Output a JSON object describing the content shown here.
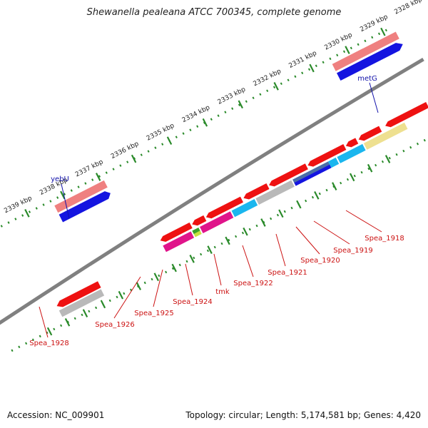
{
  "header": {
    "title": "Shewanella pealeana ATCC 700345, complete genome"
  },
  "footer": {
    "accession": "Accession: NC_009901",
    "summary": "Topology: circular; Length: 5,174,581 bp; Genes: 4,420"
  },
  "scale": {
    "unit": "kbp",
    "ticks": [
      "2339 kbp",
      "2338 kbp",
      "2337 kbp",
      "2336 kbp",
      "2335 kbp",
      "2334 kbp",
      "2333 kbp",
      "2332 kbp",
      "2331 kbp",
      "2330 kbp",
      "2329 kbp",
      "2328 kbp"
    ]
  },
  "colors": {
    "red": "#ee1111",
    "pink": "#ef8080",
    "blue": "#1414e0",
    "gray": "#b9b9b9",
    "magenta": "#e0148a",
    "cyan": "#1ab6ee",
    "yellow": "#eee090",
    "green": "#3aa02a",
    "steel": "#4a6ea8",
    "label_red": "#cc1111",
    "label_blue": "#1111aa",
    "dots": "#2a8a2a",
    "backbone": "#808080"
  },
  "labels": {
    "gene_yebU": "yebU",
    "gene_metG": "metG",
    "gene_tmk": "tmk",
    "locus_1918": "Spea_1918",
    "locus_1919": "Spea_1919",
    "locus_1920": "Spea_1920",
    "locus_1921": "Spea_1921",
    "locus_1922": "Spea_1922",
    "locus_1924": "Spea_1924",
    "locus_1925": "Spea_1925",
    "locus_1926": "Spea_1926",
    "locus_1928": "Spea_1928"
  }
}
